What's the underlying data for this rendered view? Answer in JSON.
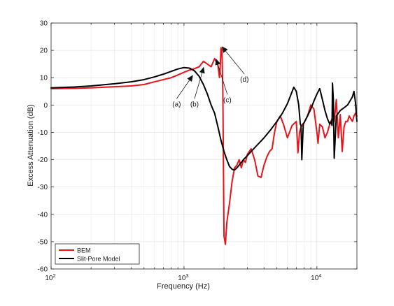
{
  "chart_data": {
    "type": "line",
    "xlabel": "Frequency (Hz)",
    "ylabel": "Excess Attenuation (dB)",
    "xscale": "log",
    "xlim": [
      100,
      20000
    ],
    "ylim": [
      -60,
      30
    ],
    "yticks": [
      30,
      20,
      10,
      0,
      -10,
      -20,
      -30,
      -40,
      -50,
      -60
    ],
    "xticks": [
      {
        "value": 100,
        "base": "10",
        "exp": "2"
      },
      {
        "value": 1000,
        "base": "10",
        "exp": "3"
      },
      {
        "value": 10000,
        "base": "10",
        "exp": "4"
      }
    ],
    "grid": true,
    "legend_position": "bottom-left",
    "series": [
      {
        "name": "BEM",
        "color": "#e8141b",
        "x": [
          100,
          150,
          200,
          300,
          400,
          500,
          600,
          700,
          800,
          900,
          1000,
          1100,
          1200,
          1300,
          1400,
          1500,
          1600,
          1700,
          1800,
          1850,
          1870,
          1900,
          1930,
          1960,
          2000,
          2050,
          2100,
          2200,
          2300,
          2400,
          2500,
          2600,
          2700,
          2800,
          2900,
          3000,
          3100,
          3200,
          3400,
          3500,
          3600,
          3800,
          4000,
          4200,
          4400,
          4600,
          4800,
          5000,
          5300,
          5600,
          6000,
          6500,
          7000,
          7200,
          7400,
          7600,
          7800,
          8000,
          8500,
          9000,
          9500,
          10000,
          10200,
          10500,
          11000,
          11500,
          12000,
          12500,
          13000,
          13500,
          14000,
          14500,
          15000,
          15500,
          16000,
          16500,
          17000,
          17500,
          18000,
          18500,
          19000,
          19500,
          20000
        ],
        "y": [
          6,
          6.1,
          6.3,
          6.7,
          7,
          7.5,
          8.5,
          9.3,
          10,
          11,
          12,
          12.8,
          13.3,
          14,
          16,
          15,
          14,
          17,
          14.5,
          10,
          13.5,
          21,
          20,
          5,
          -48,
          -51,
          -43,
          -36,
          -28,
          -23,
          -22,
          -20,
          -23,
          -20,
          -21,
          -18,
          -17,
          -16,
          -20,
          -23,
          -26,
          -26.5,
          -22,
          -19,
          -17,
          -16,
          -10,
          -6,
          -4,
          -7,
          -12,
          -7.5,
          -6,
          -17.5,
          -10,
          -8,
          -7,
          -6.5,
          -4,
          0,
          -1.5,
          -10,
          -14,
          -7,
          -8,
          -12,
          -10,
          -7,
          -5,
          -6,
          2,
          -12,
          -3.5,
          -17,
          -8,
          -6,
          -6,
          -4,
          -5,
          -6,
          -4,
          -3,
          -4
        ]
      },
      {
        "name": "Slit-Pore Model",
        "color": "#000000",
        "x": [
          100,
          150,
          200,
          300,
          400,
          500,
          600,
          700,
          800,
          900,
          1000,
          1100,
          1200,
          1300,
          1400,
          1500,
          1600,
          1700,
          1800,
          1900,
          2000,
          2100,
          2200,
          2300,
          2400,
          2500,
          2600,
          2700,
          2800,
          3000,
          3200,
          3500,
          4000,
          4500,
          5000,
          5500,
          6000,
          6400,
          6700,
          7000,
          7300,
          7500,
          7600,
          7700,
          7900,
          8100,
          8500,
          9000,
          9500,
          10000,
          10500,
          11000,
          11500,
          12000,
          12500,
          12800,
          13000,
          13100,
          13300,
          13500,
          14000,
          14500,
          15000,
          16000,
          17000,
          18000,
          18500,
          19000,
          19500,
          20000
        ],
        "y": [
          6.3,
          6.6,
          7,
          7.8,
          8.5,
          9.3,
          10.3,
          11.3,
          12.3,
          13.2,
          13.7,
          13.5,
          12.5,
          10.5,
          7.5,
          4,
          0,
          -3,
          -8,
          -13,
          -17,
          -20,
          -22.5,
          -23.5,
          -23.8,
          -23,
          -22,
          -21,
          -20,
          -18.5,
          -17,
          -15,
          -12,
          -9,
          -6,
          -3,
          0.5,
          4,
          6.5,
          5,
          0,
          -7,
          -7.5,
          -20,
          -7,
          -6,
          -4,
          -1.5,
          1.5,
          4,
          6,
          2,
          -2,
          -5,
          -7,
          -6,
          -7.5,
          8,
          2,
          -19.5,
          -4,
          -3,
          -2,
          -1,
          0,
          2,
          3,
          5,
          1,
          -6
        ]
      }
    ],
    "annotations": [
      {
        "label": "(a)",
        "text_x": 880,
        "text_y": -0.5,
        "arrow_x": 1170,
        "arrow_y": 11
      },
      {
        "label": "(b)",
        "text_x": 1200,
        "text_y": -0.5,
        "arrow_x": 1410,
        "arrow_y": 14
      },
      {
        "label": "(c)",
        "text_x": 2120,
        "text_y": 1,
        "arrow_x": 1740,
        "arrow_y": 17
      },
      {
        "label": "(d)",
        "text_x": 2850,
        "text_y": 8.5,
        "arrow_x": 1920,
        "arrow_y": 21.5
      }
    ]
  }
}
